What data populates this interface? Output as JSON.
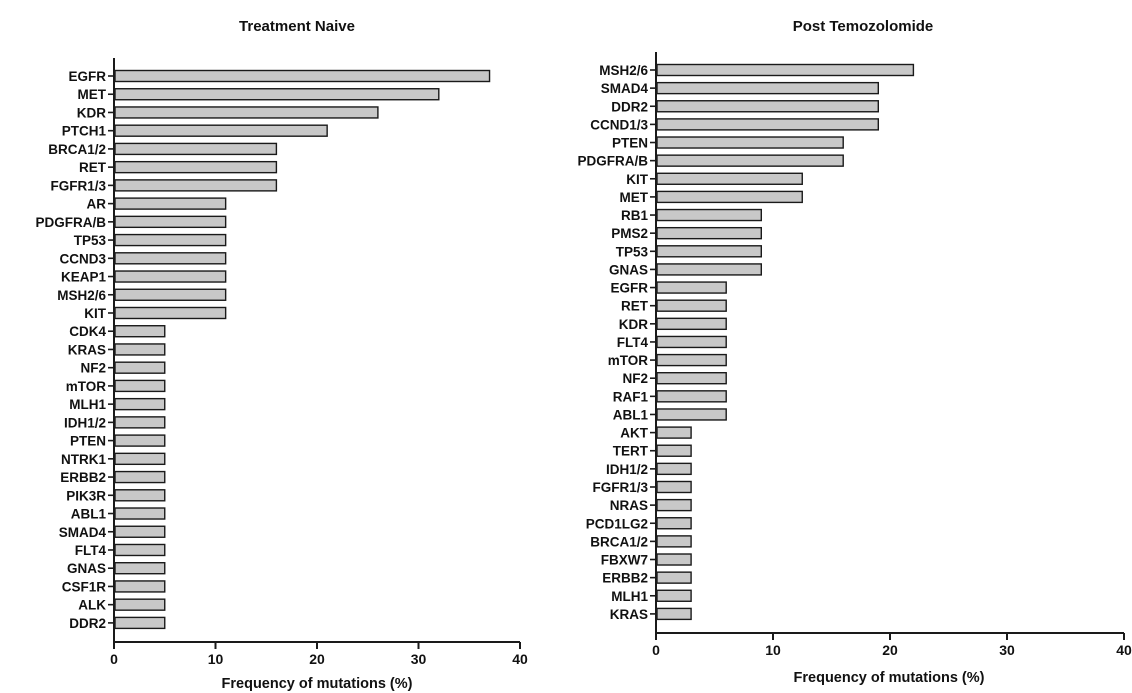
{
  "chart_data": [
    {
      "type": "bar",
      "orientation": "horizontal",
      "title": "Treatment Naive",
      "xlabel": "Frequency of mutations (%)",
      "ylabel": "",
      "xlim": [
        0,
        40
      ],
      "xticks": [
        0,
        10,
        20,
        30,
        40
      ],
      "grid": false,
      "categories": [
        "EGFR",
        "MET",
        "KDR",
        "PTCH1",
        "BRCA1/2",
        "RET",
        "FGFR1/3",
        "AR",
        "PDGFRA/B",
        "TP53",
        "CCND3",
        "KEAP1",
        "MSH2/6",
        "KIT",
        "CDK4",
        "KRAS",
        "NF2",
        "mTOR",
        "MLH1",
        "IDH1/2",
        "PTEN",
        "NTRK1",
        "ERBB2",
        "PIK3R",
        "ABL1",
        "SMAD4",
        "FLT4",
        "GNAS",
        "CSF1R",
        "ALK",
        "DDR2"
      ],
      "values": [
        37,
        32,
        26,
        21,
        16,
        16,
        16,
        11,
        11,
        11,
        11,
        11,
        11,
        11,
        5,
        5,
        5,
        5,
        5,
        5,
        5,
        5,
        5,
        5,
        5,
        5,
        5,
        5,
        5,
        5,
        5
      ]
    },
    {
      "type": "bar",
      "orientation": "horizontal",
      "title": "Post Temozolomide",
      "xlabel": "Frequency of mutations (%)",
      "ylabel": "",
      "xlim": [
        0,
        40
      ],
      "xticks": [
        0,
        10,
        20,
        30,
        40
      ],
      "grid": false,
      "categories": [
        "MSH2/6",
        "SMAD4",
        "DDR2",
        "CCND1/3",
        "PTEN",
        "PDGFRA/B",
        "KIT",
        "MET",
        "RB1",
        "PMS2",
        "TP53",
        "GNAS",
        "EGFR",
        "RET",
        "KDR",
        "FLT4",
        "mTOR",
        "NF2",
        "RAF1",
        "ABL1",
        "AKT",
        "TERT",
        "IDH1/2",
        "FGFR1/3",
        "NRAS",
        "PCD1LG2",
        "BRCA1/2",
        "FBXW7",
        "ERBB2",
        "MLH1",
        "KRAS"
      ],
      "values": [
        22,
        19,
        19,
        19,
        16,
        16,
        12.5,
        12.5,
        9,
        9,
        9,
        9,
        6,
        6,
        6,
        6,
        6,
        6,
        6,
        6,
        3,
        3,
        3,
        3,
        3,
        3,
        3,
        3,
        3,
        3,
        3
      ]
    }
  ],
  "colors": {
    "bar_fill": "#c8c8c8",
    "bar_stroke": "#1a1a1a",
    "axis": "#1a1a1a",
    "text": "#111111"
  }
}
